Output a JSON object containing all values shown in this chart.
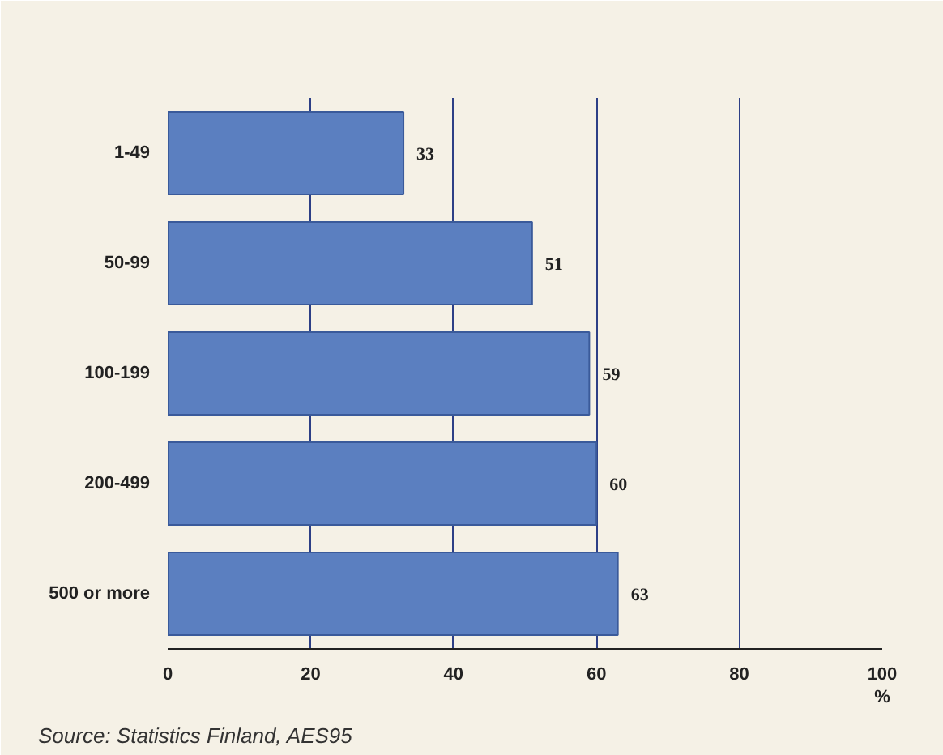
{
  "chart_data": {
    "type": "bar",
    "orientation": "horizontal",
    "categories": [
      "1-49",
      "50-99",
      "100-199",
      "200-499",
      "500 or more"
    ],
    "values": [
      33,
      51,
      59,
      60,
      63
    ],
    "color": "#5b7fc0",
    "data_labels": true,
    "xlim": [
      0,
      100
    ],
    "xticks": [
      0,
      20,
      40,
      60,
      80,
      100
    ],
    "xlabel": "%",
    "grid": "x",
    "annotations": [
      "Source: Statistics Finland, AES95"
    ]
  }
}
